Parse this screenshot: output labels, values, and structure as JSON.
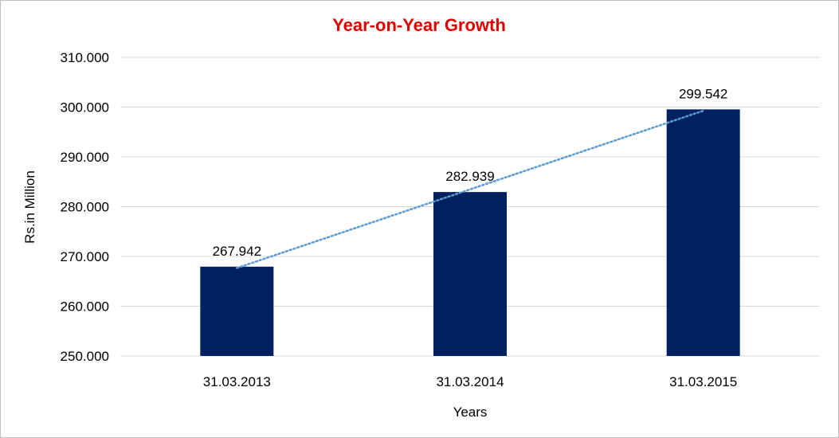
{
  "chart_data": {
    "type": "bar",
    "title": "Year-on-Year Growth",
    "xlabel": "Years",
    "ylabel": "Rs.in Million",
    "categories": [
      "31.03.2013",
      "31.03.2014",
      "31.03.2015"
    ],
    "values": [
      267.942,
      282.939,
      299.542
    ],
    "data_labels": [
      "267.942",
      "282.939",
      "299.542"
    ],
    "ylim": [
      250,
      310
    ],
    "y_ticks": [
      250,
      260,
      270,
      280,
      290,
      300,
      310
    ],
    "y_tick_labels": [
      "250.000",
      "260.000",
      "270.000",
      "280.000",
      "290.000",
      "300.000",
      "310.000"
    ],
    "grid": true,
    "trendline": "linear (dotted)",
    "colors": {
      "bar": "#002060",
      "title": "#e00000",
      "trendline": "#5b9bd5",
      "grid": "#d9d9d9"
    }
  }
}
